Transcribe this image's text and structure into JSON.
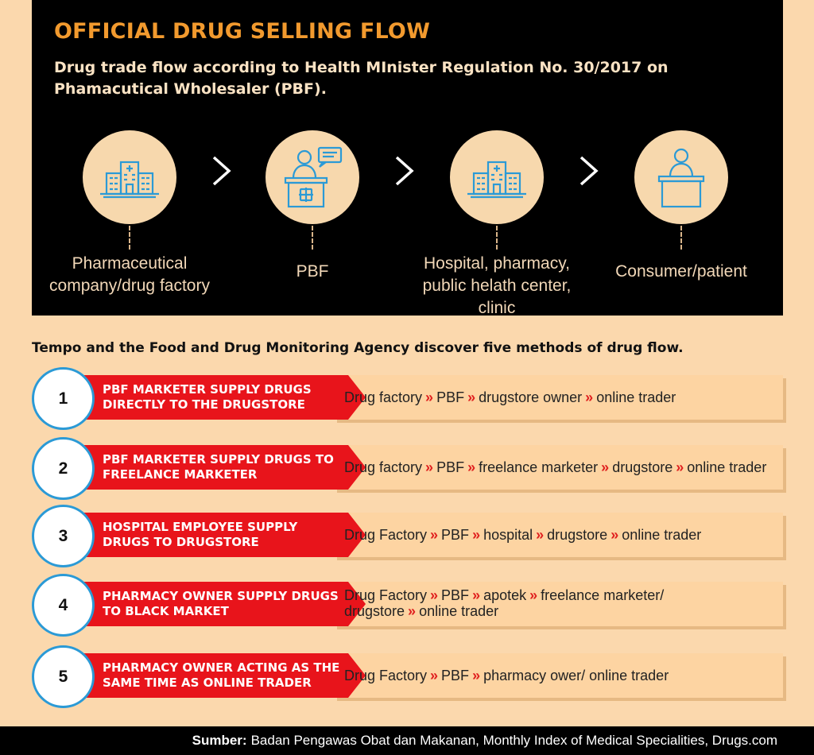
{
  "header": {
    "title": "OFFICIAL DRUG SELLING FLOW",
    "subtitle": "Drug trade flow according to Health MInister Regulation No. 30/2017 on Phamacutical Wholesaler (PBF)."
  },
  "stages": [
    {
      "label": "Pharmaceutical company/drug factory",
      "icon": "factory-icon"
    },
    {
      "label": "PBF",
      "icon": "wholesaler-desk-icon"
    },
    {
      "label": "Hospital, pharmacy, public helath center, clinic",
      "icon": "hospital-icon"
    },
    {
      "label": "Consumer/patient",
      "icon": "patient-desk-icon"
    }
  ],
  "intro": "Tempo and the Food and Drug Monitoring Agency discover five methods of drug flow.",
  "methods": [
    {
      "number": "1",
      "title": "PBF MARKETER  SUPPLY DRUGS DIRECTLY TO THE DRUGSTORE",
      "flow": [
        "Drug factory",
        "PBF",
        "drugstore owner",
        "online trader"
      ]
    },
    {
      "number": "2",
      "title": "PBF MARKETER  SUPPLY DRUGS TO FREELANCE MARKETER",
      "flow": [
        "Drug factory",
        "PBF",
        "freelance marketer",
        "drugstore",
        "online trader"
      ]
    },
    {
      "number": "3",
      "title": "HOSPITAL EMPLOYEE SUPPLY DRUGS TO DRUGSTORE",
      "flow": [
        "Drug Factory",
        "PBF",
        "hospital",
        "drugstore",
        "online trader"
      ]
    },
    {
      "number": "4",
      "title": "PHARMACY OWNER SUPPLY DRUGS TO BLACK MARKET",
      "flow": [
        "Drug Factory",
        "PBF",
        "apotek",
        "freelance marketer/ drugstore",
        "online trader"
      ]
    },
    {
      "number": "5",
      "title": "PHARMACY OWNER ACTING AS THE SAME TIME AS ONLINE TRADER",
      "flow": [
        "Drug Factory",
        "PBF",
        "pharmacy ower/ online trader"
      ]
    }
  ],
  "separator": "»",
  "footer": {
    "label": "Sumber:",
    "text": "Badan Pengawas Obat dan Makanan, Monthly Index of Medical Specialities, Drugs.com"
  },
  "colors": {
    "panel": "#000000",
    "title": "#f29a2e",
    "circle": "#f7d8ad",
    "icon": "#2b9ad6",
    "banner": "#e8141b",
    "flowBox": "#fdd4a2",
    "background": "#fbd8ad",
    "separator": "#e0201f"
  }
}
